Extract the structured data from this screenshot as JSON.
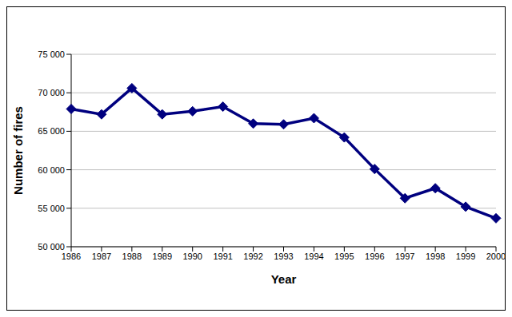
{
  "chart_data": {
    "type": "line",
    "x_label": "Year",
    "y_label": "Number of fires",
    "categories": [
      "1986",
      "1987",
      "1988",
      "1989",
      "1990",
      "1991",
      "1992",
      "1993",
      "1994",
      "1995",
      "1996",
      "1997",
      "1998",
      "1999",
      "2000"
    ],
    "values": [
      67900,
      67200,
      70600,
      67200,
      67600,
      68200,
      66000,
      65900,
      66700,
      64200,
      60100,
      56300,
      57600,
      55200,
      53700
    ],
    "color": "#00007f",
    "marker": "diamond",
    "ylim": [
      50000,
      75000
    ],
    "yticks": [
      {
        "value": 50000,
        "label": "50 000"
      },
      {
        "value": 55000,
        "label": "55 000"
      },
      {
        "value": 60000,
        "label": "60 000"
      },
      {
        "value": 65000,
        "label": "65 000"
      },
      {
        "value": 70000,
        "label": "70 000"
      },
      {
        "value": 75000,
        "label": "75 000"
      }
    ],
    "grid": true
  }
}
